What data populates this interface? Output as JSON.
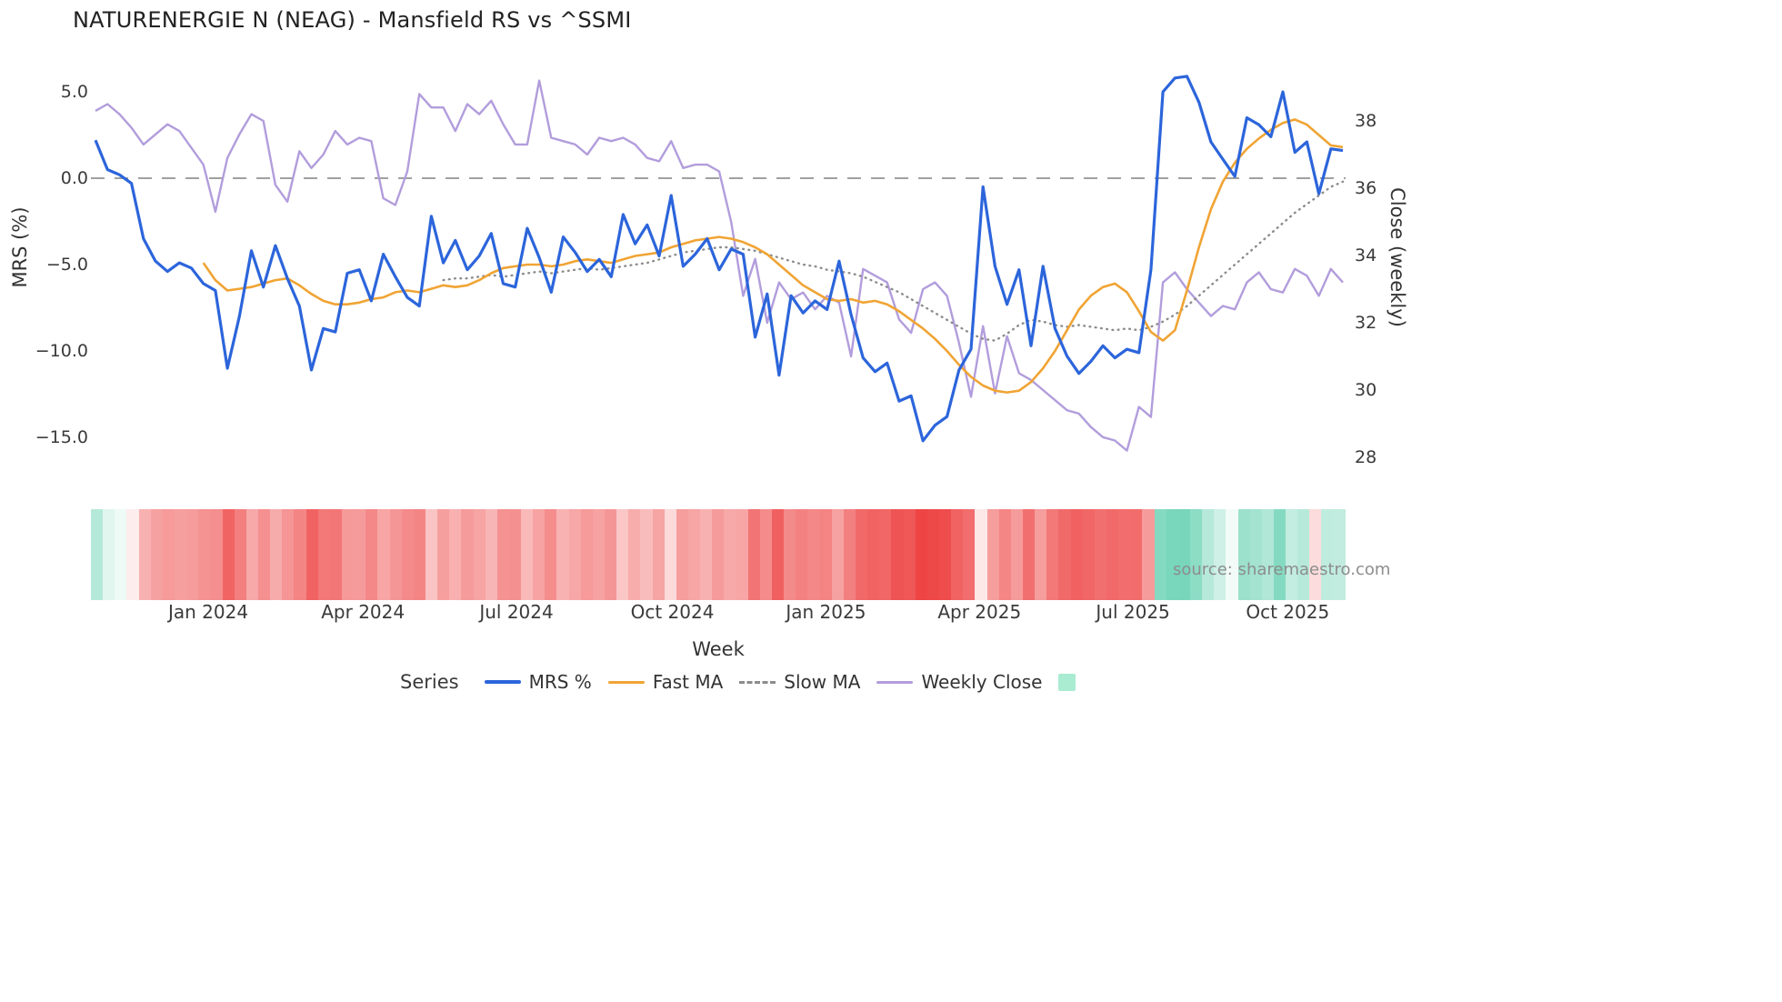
{
  "title": "NATURENERGIE N (NEAG) - Mansfield RS vs ^SSMI",
  "source": "source: sharemaestro.com",
  "axes": {
    "left_label": "MRS (%)",
    "right_label": "Close (weekly)",
    "x_label": "Week",
    "left_ticks": [
      "5.0",
      "0.0",
      "−5.0",
      "−10.0",
      "−15.0"
    ],
    "left_tick_values": [
      5,
      0,
      -5,
      -10,
      -15
    ],
    "right_ticks": [
      "38",
      "36",
      "34",
      "32",
      "30",
      "28"
    ],
    "right_tick_values": [
      38,
      36,
      34,
      32,
      30,
      28
    ],
    "x_ticks": [
      "Jan 2024",
      "Apr 2024",
      "Jul 2024",
      "Oct 2024",
      "Jan 2025",
      "Apr 2025",
      "Jul 2025",
      "Oct 2025"
    ],
    "x_tick_positions": [
      9.4,
      22.3,
      35.1,
      48.1,
      60.9,
      73.7,
      86.5,
      99.4
    ]
  },
  "legend": {
    "title": "Series",
    "items": [
      {
        "label": "MRS %",
        "swatch": "line",
        "color": "#2c65db",
        "thickness": 4
      },
      {
        "label": "Fast MA",
        "swatch": "line",
        "color": "#f0a434",
        "thickness": 3
      },
      {
        "label": "Slow MA",
        "swatch": "dashed-line",
        "color": "#8c8c8c",
        "thickness": 3
      },
      {
        "label": "Weekly Close",
        "swatch": "line",
        "color": "#b29ddc",
        "thickness": 3
      },
      {
        "label": "",
        "swatch": "square",
        "color": "#a9ecd1",
        "thickness": 0
      }
    ]
  },
  "chart_data": {
    "type": "line",
    "x_unit": "week_index",
    "n_points": 105,
    "title": "NATURENERGIE N (NEAG) - Mansfield RS vs ^SSMI",
    "xlabel": "Week",
    "ylabel_left": "MRS (%)",
    "ylabel_right": "Close (weekly)",
    "ylim_left": [
      -17.5,
      6.4
    ],
    "ylim_right": [
      27.3,
      39.6
    ],
    "grid": false,
    "legend_position": "bottom",
    "zero_line": {
      "value": 0,
      "color": "#a0a0a0",
      "dash": "15 11"
    },
    "series": [
      {
        "name": "MRS %",
        "axis": "left",
        "color": "#2c65db",
        "width": 3.2,
        "dash": null,
        "values": [
          2.2,
          0.5,
          0.2,
          -0.3,
          -3.5,
          -4.8,
          -5.4,
          -4.9,
          -5.2,
          -6.1,
          -6.5,
          -11.0,
          -8.0,
          -4.2,
          -6.3,
          -3.9,
          -5.8,
          -7.4,
          -11.1,
          -8.7,
          -8.9,
          -5.5,
          -5.3,
          -7.1,
          -4.4,
          -5.7,
          -6.9,
          -7.4,
          -2.2,
          -4.9,
          -3.6,
          -5.3,
          -4.5,
          -3.2,
          -6.1,
          -6.3,
          -2.9,
          -4.6,
          -6.6,
          -3.4,
          -4.3,
          -5.4,
          -4.7,
          -5.7,
          -2.1,
          -3.8,
          -2.7,
          -4.5,
          -1.0,
          -5.1,
          -4.4,
          -3.5,
          -5.3,
          -4.1,
          -4.4,
          -9.2,
          -6.7,
          -11.4,
          -6.8,
          -7.8,
          -7.1,
          -7.6,
          -4.8,
          -7.9,
          -10.4,
          -11.2,
          -10.7,
          -12.9,
          -12.6,
          -15.2,
          -14.3,
          -13.8,
          -11.1,
          -9.9,
          -0.5,
          -5.1,
          -7.3,
          -5.3,
          -9.7,
          -5.1,
          -8.7,
          -10.3,
          -11.3,
          -10.6,
          -9.7,
          -10.4,
          -9.9,
          -10.1,
          -5.3,
          5.0,
          5.8,
          5.9,
          4.4,
          2.1,
          1.1,
          0.1,
          3.5,
          3.1,
          2.4,
          5.0,
          1.5,
          2.1,
          -0.9,
          1.7,
          1.6
        ]
      },
      {
        "name": "Fast MA",
        "axis": "left",
        "color": "#f0a434",
        "width": 2.6,
        "dash": null,
        "values": [
          null,
          null,
          null,
          null,
          null,
          null,
          null,
          null,
          null,
          -4.9,
          -5.9,
          -6.5,
          -6.4,
          -6.3,
          -6.1,
          -5.9,
          -5.8,
          -6.2,
          -6.7,
          -7.1,
          -7.3,
          -7.3,
          -7.2,
          -7.0,
          -6.9,
          -6.6,
          -6.5,
          -6.6,
          -6.4,
          -6.2,
          -6.3,
          -6.2,
          -5.9,
          -5.5,
          -5.2,
          -5.1,
          -5.0,
          -5.0,
          -5.1,
          -5.0,
          -4.8,
          -4.7,
          -4.8,
          -4.9,
          -4.7,
          -4.5,
          -4.4,
          -4.3,
          -4.0,
          -3.8,
          -3.6,
          -3.5,
          -3.4,
          -3.5,
          -3.7,
          -4.0,
          -4.4,
          -5.0,
          -5.6,
          -6.2,
          -6.6,
          -7.0,
          -7.1,
          -7.0,
          -7.2,
          -7.1,
          -7.3,
          -7.7,
          -8.2,
          -8.7,
          -9.3,
          -10.0,
          -10.8,
          -11.5,
          -12.0,
          -12.3,
          -12.4,
          -12.3,
          -11.8,
          -11.0,
          -10.0,
          -8.8,
          -7.6,
          -6.8,
          -6.3,
          -6.1,
          -6.6,
          -7.7,
          -8.9,
          -9.4,
          -8.8,
          -6.5,
          -4.0,
          -1.8,
          -0.2,
          0.9,
          1.7,
          2.3,
          2.8,
          3.2,
          3.4,
          3.1,
          2.5,
          1.9,
          1.8
        ]
      },
      {
        "name": "Slow MA",
        "axis": "left",
        "color": "#8c8c8c",
        "width": 2.4,
        "dash": "0.8 5.5",
        "values": [
          null,
          null,
          null,
          null,
          null,
          null,
          null,
          null,
          null,
          null,
          null,
          null,
          null,
          null,
          null,
          null,
          null,
          null,
          null,
          null,
          null,
          null,
          null,
          null,
          null,
          null,
          null,
          null,
          null,
          -5.9,
          -5.8,
          -5.8,
          -5.7,
          -5.6,
          -5.7,
          -5.6,
          -5.5,
          -5.4,
          -5.5,
          -5.4,
          -5.3,
          -5.2,
          -5.3,
          -5.2,
          -5.1,
          -5.0,
          -4.9,
          -4.7,
          -4.5,
          -4.3,
          -4.2,
          -4.1,
          -4.0,
          -4.0,
          -4.1,
          -4.2,
          -4.4,
          -4.6,
          -4.8,
          -5.0,
          -5.1,
          -5.3,
          -5.4,
          -5.5,
          -5.7,
          -6.0,
          -6.3,
          -6.6,
          -7.0,
          -7.4,
          -7.8,
          -8.2,
          -8.6,
          -9.0,
          -9.3,
          -9.4,
          -9.0,
          -8.5,
          -8.2,
          -8.3,
          -8.5,
          -8.6,
          -8.5,
          -8.6,
          -8.7,
          -8.8,
          -8.7,
          -8.8,
          -8.6,
          -8.3,
          -7.9,
          -7.4,
          -6.8,
          -6.2,
          -5.6,
          -5.0,
          -4.4,
          -3.8,
          -3.2,
          -2.6,
          -2.0,
          -1.5,
          -1.0,
          -0.5,
          -0.2
        ]
      },
      {
        "name": "Weekly Close",
        "axis": "right",
        "color": "#b29ddc",
        "width": 2.4,
        "dash": null,
        "values": [
          38.3,
          38.5,
          38.2,
          37.8,
          37.3,
          37.6,
          37.9,
          37.7,
          37.2,
          36.7,
          35.3,
          36.9,
          37.6,
          38.2,
          38.0,
          36.1,
          35.6,
          37.1,
          36.6,
          37.0,
          37.7,
          37.3,
          37.5,
          37.4,
          35.7,
          35.5,
          36.5,
          38.8,
          38.4,
          38.4,
          37.7,
          38.5,
          38.2,
          38.6,
          37.9,
          37.3,
          37.3,
          39.2,
          37.5,
          37.4,
          37.3,
          37.0,
          37.5,
          37.4,
          37.5,
          37.3,
          36.9,
          36.8,
          37.4,
          36.6,
          36.7,
          36.7,
          36.5,
          35.0,
          32.8,
          33.9,
          32.0,
          33.2,
          32.7,
          32.9,
          32.4,
          32.8,
          32.6,
          31.0,
          33.6,
          33.4,
          33.2,
          32.1,
          31.7,
          33.0,
          33.2,
          32.8,
          31.4,
          29.8,
          31.9,
          29.9,
          31.6,
          30.5,
          30.3,
          30.0,
          29.7,
          29.4,
          29.3,
          28.9,
          28.6,
          28.5,
          28.2,
          29.5,
          29.2,
          33.2,
          33.5,
          33.0,
          32.6,
          32.2,
          32.5,
          32.4,
          33.2,
          33.5,
          33.0,
          32.9,
          33.6,
          33.4,
          32.8,
          33.6,
          33.2
        ]
      }
    ],
    "heatmap": {
      "description": "weekly color strip derived from MRS % value: red = negative, green = positive",
      "from_series": "MRS %",
      "negative_rgb": [
        238,
        68,
        68
      ],
      "positive_rgb": [
        18,
        184,
        134
      ],
      "max_abs": 15,
      "gamma": 0.6
    }
  }
}
